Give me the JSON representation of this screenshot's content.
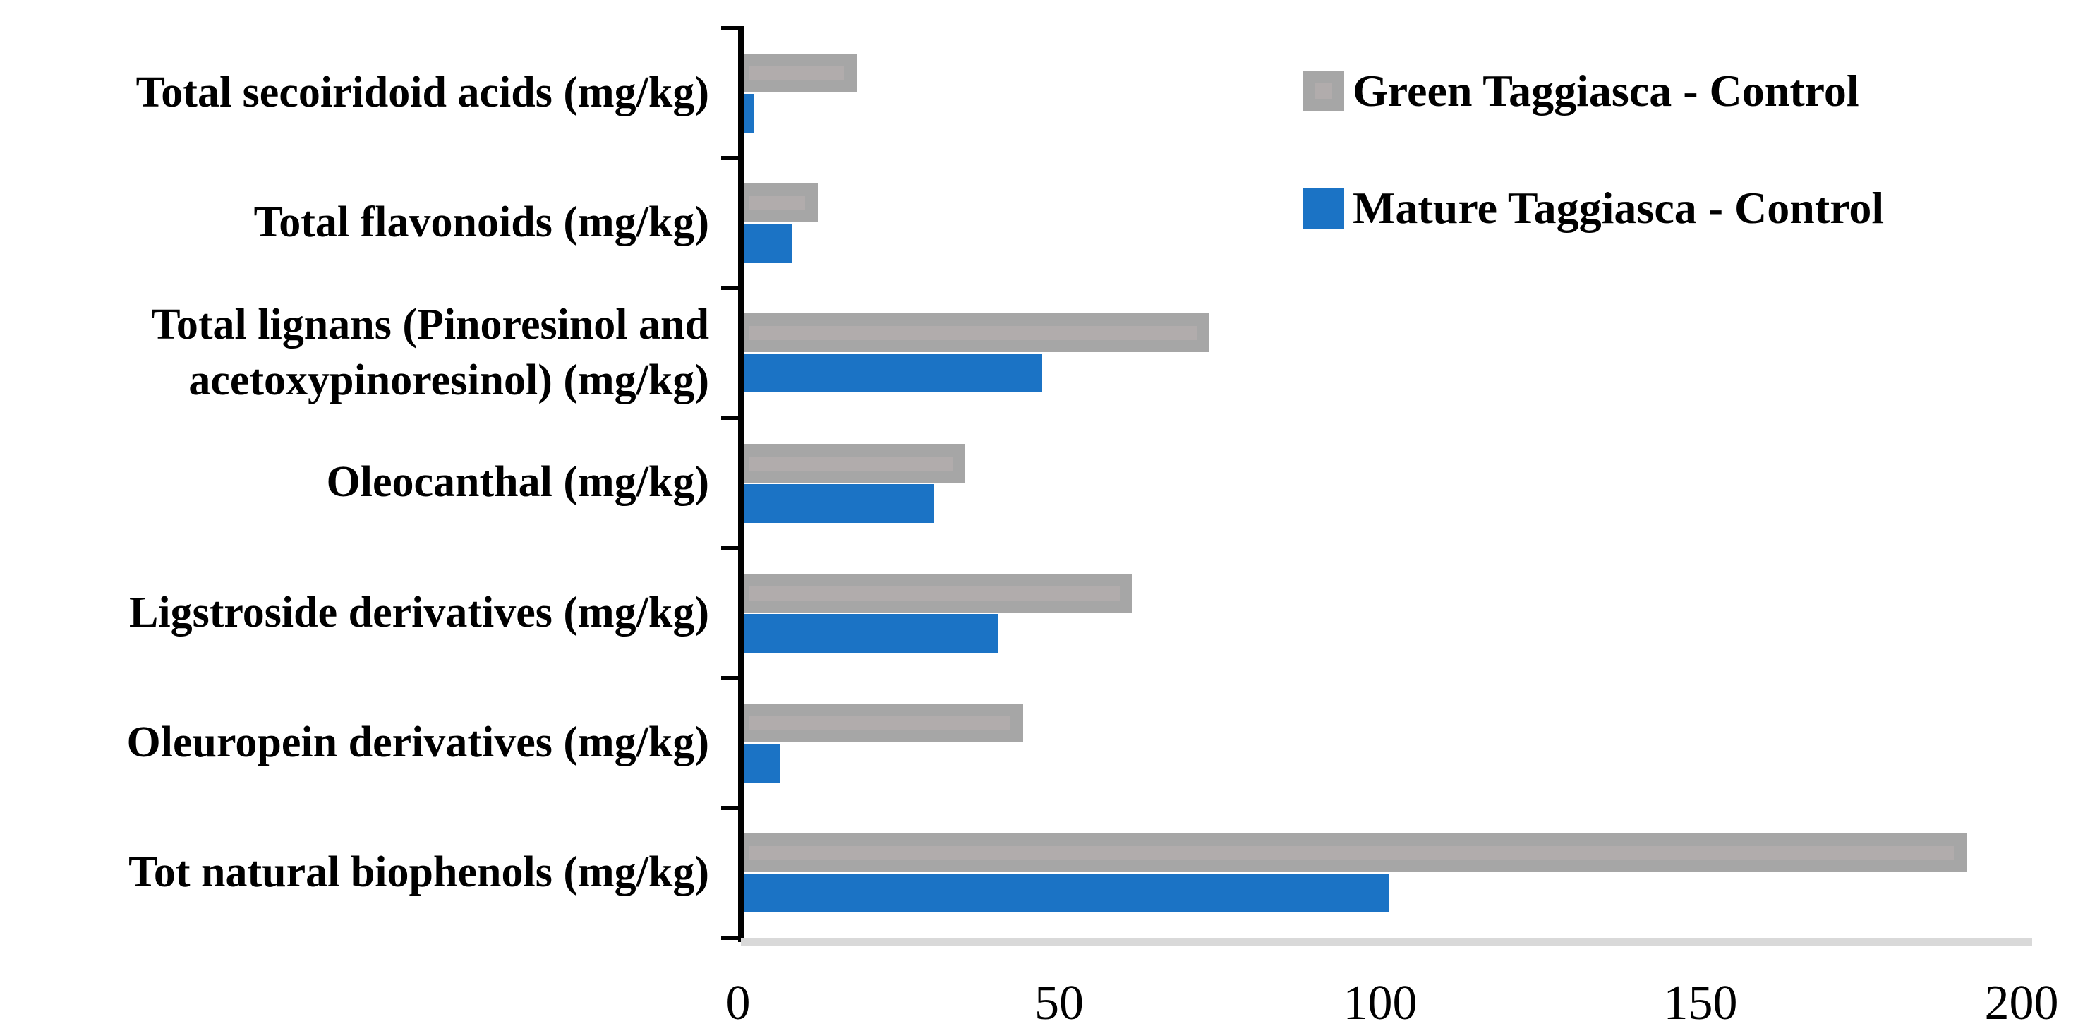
{
  "chart_data": {
    "type": "bar",
    "orientation": "horizontal",
    "title": "",
    "xlabel": "",
    "ylabel": "",
    "categories": [
      "Total secoiridoid acids (mg/kg)",
      "Total flavonoids (mg/kg)",
      "Total lignans (Pinoresinol and acetoxypinoresinol) (mg/kg)",
      "Oleocanthal (mg/kg)",
      "Ligstroside derivatives (mg/kg)",
      "Oleuropein derivatives (mg/kg)",
      "Tot natural biophenols (mg/kg)"
    ],
    "series": [
      {
        "name": "Green Taggiasca - Control",
        "color": "#A6A6A6",
        "inner_color": "#B1ACAC",
        "values": [
          18,
          12,
          73,
          35,
          61,
          44,
          191
        ]
      },
      {
        "name": "Mature Taggiasca - Control",
        "color": "#1B73C5",
        "values": [
          2,
          8,
          47,
          30,
          40,
          6,
          101
        ]
      }
    ],
    "x_axis": {
      "min": 0,
      "max": 200,
      "ticks": [
        "0",
        "50",
        "100",
        "150",
        "200"
      ]
    },
    "grid": false,
    "legend_position": "top-right"
  },
  "colors": {
    "bar_gray": "#A6A6A6",
    "bar_gray_inner": "#B1ACAC",
    "bar_blue": "#1B73C5",
    "axis_black": "#000000",
    "axis_baseline_gray": "#D9D9D9",
    "text": "#000000",
    "background": "#FFFFFF"
  }
}
